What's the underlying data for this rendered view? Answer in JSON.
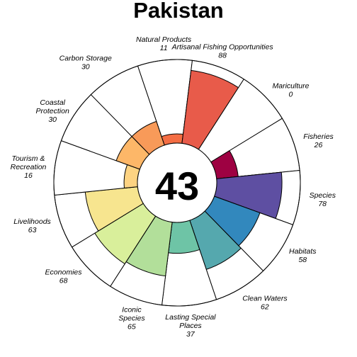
{
  "chart_data": {
    "type": "flower",
    "title": "Pakistan",
    "center_score": "43",
    "max_value": 100,
    "petals": [
      {
        "label": "Natural Products",
        "value": 11,
        "color": "#F46D43",
        "rot": 0,
        "anchor": "middle",
        "dy": 0,
        "lines": [
          "Natural Products",
          "11"
        ]
      },
      {
        "label": "Artisanal Fishing Opportunities",
        "value": 88,
        "color": "#E85B4A",
        "rot": 30,
        "anchor": "start",
        "dy": 0,
        "lines": [
          "Artisanal Fishing Opportunities",
          "88"
        ]
      },
      {
        "label": "Mariculture",
        "value": 0,
        "color": "#D53E4F",
        "rot": 60,
        "anchor": "start",
        "dy": 0,
        "lines": [
          "Mariculture",
          "0"
        ]
      },
      {
        "label": "Fisheries",
        "value": 26,
        "color": "#9E0142",
        "rot": 90,
        "anchor": "start",
        "dy": 0,
        "lines": [
          "Fisheries",
          "26"
        ]
      },
      {
        "label": "Species",
        "value": 78,
        "color": "#5E4FA2",
        "rot": 120,
        "anchor": "start",
        "dy": 0,
        "lines": [
          "Species",
          "78"
        ]
      },
      {
        "label": "Habitats",
        "value": 58,
        "color": "#3288BD",
        "rot": 150,
        "anchor": "start",
        "dy": 0,
        "lines": [
          "Habitats",
          "58"
        ]
      },
      {
        "label": "Clean Waters",
        "value": 62,
        "color": "#55A8AE",
        "rot": 180,
        "anchor": "start",
        "dy": 0,
        "lines": [
          "Clean Waters",
          "62"
        ]
      },
      {
        "label": "Lasting Special Places",
        "value": 37,
        "color": "#6EC4A6",
        "rot": 210,
        "anchor": "middle",
        "dy": 0,
        "lines": [
          "Lasting Special",
          "Places",
          "37"
        ]
      },
      {
        "label": "Iconic Species",
        "value": 65,
        "color": "#B2DF9A",
        "rot": 240,
        "anchor": "middle",
        "dy": 0,
        "lines": [
          "Iconic",
          "Species",
          "65"
        ]
      },
      {
        "label": "Economies",
        "value": 68,
        "color": "#D9EF9B",
        "rot": 270,
        "anchor": "middle",
        "dy": 0,
        "lines": [
          "Economies",
          "68"
        ]
      },
      {
        "label": "Livelihoods",
        "value": 63,
        "color": "#F7E58F",
        "rot": 300,
        "anchor": "middle",
        "dy": 0,
        "lines": [
          "Livelihoods",
          "63"
        ]
      },
      {
        "label": "Tourism & Recreation",
        "value": 16,
        "color": "#FDD382",
        "rot": 330,
        "anchor": "middle",
        "dy": 0,
        "lines": [
          "Tourism &",
          "Recreation",
          "16"
        ]
      },
      {
        "label": "Coastal Protection",
        "value": 30,
        "color": "#FDB768",
        "rot": 360,
        "anchor": "middle",
        "dy": 0,
        "lines": [
          "Coastal",
          "Protection",
          "30"
        ]
      },
      {
        "label": "Carbon Storage",
        "value": 30,
        "color": "#F89A59",
        "rot": 390,
        "anchor": "middle",
        "dy": 0,
        "lines": [
          "Carbon Storage",
          "30"
        ]
      }
    ]
  }
}
